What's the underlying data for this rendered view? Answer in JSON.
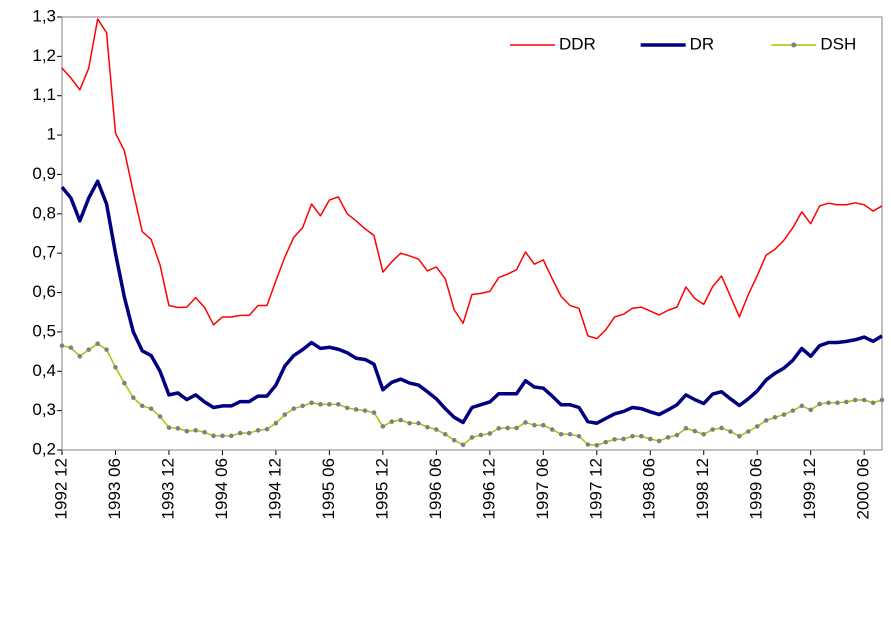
{
  "chart_data": {
    "type": "line",
    "categories": [
      "1992 12",
      null,
      null,
      null,
      null,
      null,
      "1993 06",
      null,
      null,
      null,
      null,
      null,
      "1993 12",
      null,
      null,
      null,
      null,
      null,
      "1994 06",
      null,
      null,
      null,
      null,
      null,
      "1994 12",
      null,
      null,
      null,
      null,
      null,
      "1995 06",
      null,
      null,
      null,
      null,
      null,
      "1995 12",
      null,
      null,
      null,
      null,
      null,
      "1996 06",
      null,
      null,
      null,
      null,
      null,
      "1996 12",
      null,
      null,
      null,
      null,
      null,
      "1997 06",
      null,
      null,
      null,
      null,
      null,
      "1997 12",
      null,
      null,
      null,
      null,
      null,
      "1998 06",
      null,
      null,
      null,
      null,
      null,
      "1998 12",
      null,
      null,
      null,
      null,
      null,
      "1999 06",
      null,
      null,
      null,
      null,
      null,
      "1999 12",
      null,
      null,
      null,
      null,
      null,
      "2000 06",
      null,
      null
    ],
    "series": [
      {
        "name": "DDR",
        "color": "#ff0000",
        "width": 1.5,
        "values": [
          1.17,
          1.145,
          1.115,
          1.17,
          1.295,
          1.26,
          1.005,
          0.96,
          0.855,
          0.755,
          0.735,
          0.67,
          0.567,
          0.562,
          0.563,
          0.587,
          0.562,
          0.518,
          0.538,
          0.538,
          0.542,
          0.542,
          0.567,
          0.567,
          0.63,
          0.69,
          0.74,
          0.765,
          0.825,
          0.795,
          0.835,
          0.843,
          0.8,
          0.782,
          0.762,
          0.745,
          0.652,
          0.678,
          0.7,
          0.693,
          0.685,
          0.655,
          0.665,
          0.635,
          0.556,
          0.522,
          0.595,
          0.598,
          0.603,
          0.638,
          0.647,
          0.658,
          0.703,
          0.672,
          0.683,
          0.635,
          0.59,
          0.567,
          0.56,
          0.49,
          0.483,
          0.505,
          0.538,
          0.545,
          0.56,
          0.563,
          0.553,
          0.543,
          0.555,
          0.563,
          0.614,
          0.585,
          0.57,
          0.615,
          0.642,
          0.59,
          0.538,
          0.595,
          0.643,
          0.695,
          0.71,
          0.733,
          0.765,
          0.805,
          0.775,
          0.82,
          0.827,
          0.823,
          0.823,
          0.828,
          0.823,
          0.807,
          0.82
        ]
      },
      {
        "name": "DR",
        "color": "#000080",
        "width": 3.5,
        "values": [
          0.868,
          0.84,
          0.782,
          0.84,
          0.883,
          0.825,
          0.7,
          0.588,
          0.5,
          0.452,
          0.44,
          0.4,
          0.34,
          0.345,
          0.328,
          0.34,
          0.322,
          0.308,
          0.312,
          0.312,
          0.323,
          0.323,
          0.337,
          0.337,
          0.365,
          0.413,
          0.44,
          0.455,
          0.473,
          0.458,
          0.461,
          0.456,
          0.447,
          0.433,
          0.43,
          0.418,
          0.353,
          0.372,
          0.38,
          0.37,
          0.365,
          0.348,
          0.33,
          0.305,
          0.283,
          0.27,
          0.308,
          0.315,
          0.322,
          0.343,
          0.343,
          0.343,
          0.376,
          0.36,
          0.357,
          0.337,
          0.315,
          0.315,
          0.308,
          0.272,
          0.268,
          0.28,
          0.292,
          0.298,
          0.308,
          0.305,
          0.297,
          0.29,
          0.302,
          0.315,
          0.34,
          0.328,
          0.318,
          0.342,
          0.348,
          0.33,
          0.313,
          0.33,
          0.35,
          0.378,
          0.395,
          0.408,
          0.428,
          0.458,
          0.438,
          0.465,
          0.473,
          0.473,
          0.476,
          0.48,
          0.487,
          0.476,
          0.49
        ]
      },
      {
        "name": "DSH",
        "color": "#99cc00",
        "marker_color": "#808080",
        "width": 1.5,
        "values": [
          0.465,
          0.46,
          0.438,
          0.455,
          0.47,
          0.455,
          0.41,
          0.37,
          0.333,
          0.312,
          0.305,
          0.285,
          0.257,
          0.255,
          0.248,
          0.25,
          0.245,
          0.236,
          0.236,
          0.236,
          0.243,
          0.243,
          0.25,
          0.253,
          0.268,
          0.29,
          0.305,
          0.312,
          0.32,
          0.316,
          0.316,
          0.316,
          0.307,
          0.303,
          0.3,
          0.295,
          0.26,
          0.272,
          0.276,
          0.268,
          0.268,
          0.258,
          0.252,
          0.24,
          0.225,
          0.213,
          0.232,
          0.238,
          0.242,
          0.255,
          0.256,
          0.256,
          0.27,
          0.263,
          0.263,
          0.252,
          0.24,
          0.24,
          0.235,
          0.214,
          0.212,
          0.22,
          0.227,
          0.228,
          0.235,
          0.235,
          0.228,
          0.223,
          0.232,
          0.238,
          0.255,
          0.248,
          0.24,
          0.252,
          0.256,
          0.247,
          0.235,
          0.247,
          0.26,
          0.275,
          0.283,
          0.29,
          0.3,
          0.312,
          0.302,
          0.317,
          0.32,
          0.32,
          0.322,
          0.327,
          0.327,
          0.32,
          0.327
        ]
      }
    ],
    "ylim": [
      0.2,
      1.3
    ],
    "yticks": [
      {
        "value": 0.2,
        "label": "0,2"
      },
      {
        "value": 0.3,
        "label": "0,3"
      },
      {
        "value": 0.4,
        "label": "0,4"
      },
      {
        "value": 0.5,
        "label": "0,5"
      },
      {
        "value": 0.6,
        "label": "0,6"
      },
      {
        "value": 0.7,
        "label": "0,7"
      },
      {
        "value": 0.8,
        "label": "0,8"
      },
      {
        "value": 0.9,
        "label": "0,9"
      },
      1,
      {
        "value": 1.1,
        "label": "1,1"
      },
      {
        "value": 1.2,
        "label": "1,2"
      },
      {
        "value": 1.3,
        "label": "1,3"
      }
    ],
    "grid": false,
    "legend": "upper right"
  }
}
